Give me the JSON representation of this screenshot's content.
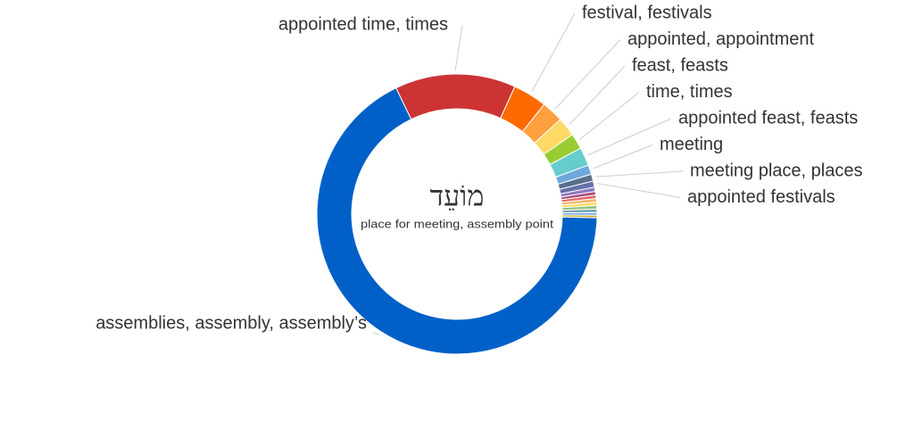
{
  "chart_data": {
    "type": "donut",
    "center_title": "מוֹעֵד",
    "center_subtitle": "place for meeting, assembly point",
    "categories": [
      "appointed time, times",
      "festival, festivals",
      "appointed, appointment",
      "feast, feasts",
      "time, times",
      "appointed feast, feasts",
      "meeting",
      "meeting place, places",
      "appointed festivals",
      null,
      null,
      null,
      null,
      null,
      null,
      null,
      null,
      null,
      "assemblies, assembly, assembly’s"
    ],
    "values": [
      13.9,
      3.9,
      2.5,
      2.2,
      1.8,
      2.1,
      1.1,
      0.8,
      0.7,
      0.5,
      0.4,
      0.4,
      0.4,
      0.4,
      0.4,
      0.4,
      0.3,
      0.3,
      67.2
    ],
    "colors": [
      "#cc3333",
      "#ff6a00",
      "#ffa040",
      "#ffd966",
      "#99cc33",
      "#66cccc",
      "#6fa8dc",
      "#5a6e8c",
      "#6670a8",
      "#8e7cc3",
      "#a64d79",
      "#e06666",
      "#f6b26b",
      "#ffd966",
      "#93c47d",
      "#76a5af",
      "#6d9eeb",
      "#c9b038",
      "#0060c8"
    ]
  }
}
